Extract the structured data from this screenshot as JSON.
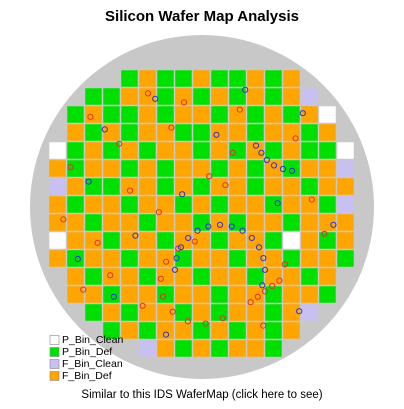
{
  "chart_data": {
    "type": "wafer",
    "title": "Silicon Wafer Map Analysis",
    "footer": "Similar to this IDS WaferMap (click here to see)",
    "legend": "bottom-left",
    "series": [
      {
        "name": "P_Bin_Clean",
        "color": "#ffffff"
      },
      {
        "name": "P_Bin_Def",
        "color": "#00e000"
      },
      {
        "name": "F_Bin_Clean",
        "color": "#c8c0f0"
      },
      {
        "name": "F_Bin_Def",
        "color": "#ffa500"
      }
    ],
    "dies": [
      [
        null,
        null,
        null,
        null,
        1,
        3,
        1,
        1,
        3,
        1,
        1,
        3,
        1,
        3,
        null,
        null,
        null
      ],
      [
        null,
        null,
        1,
        1,
        3,
        3,
        1,
        3,
        1,
        3,
        1,
        3,
        1,
        3,
        2,
        null,
        null
      ],
      [
        null,
        1,
        3,
        1,
        1,
        3,
        1,
        3,
        3,
        1,
        3,
        1,
        3,
        1,
        3,
        0,
        null
      ],
      [
        null,
        3,
        1,
        3,
        1,
        3,
        3,
        1,
        1,
        3,
        3,
        1,
        3,
        3,
        1,
        3,
        null
      ],
      [
        0,
        1,
        3,
        1,
        3,
        1,
        3,
        3,
        1,
        3,
        1,
        3,
        1,
        3,
        1,
        1,
        0
      ],
      [
        3,
        1,
        3,
        3,
        1,
        3,
        1,
        3,
        3,
        1,
        3,
        1,
        3,
        1,
        3,
        3,
        2
      ],
      [
        2,
        3,
        1,
        1,
        3,
        3,
        1,
        3,
        1,
        3,
        3,
        1,
        3,
        3,
        1,
        3,
        3
      ],
      [
        3,
        1,
        3,
        3,
        1,
        3,
        3,
        1,
        3,
        1,
        3,
        3,
        1,
        3,
        3,
        1,
        2
      ],
      [
        3,
        3,
        1,
        3,
        3,
        1,
        3,
        3,
        1,
        3,
        1,
        3,
        3,
        1,
        3,
        3,
        3
      ],
      [
        0,
        3,
        3,
        1,
        3,
        3,
        1,
        3,
        3,
        1,
        3,
        3,
        1,
        0,
        3,
        1,
        3
      ],
      [
        3,
        1,
        3,
        3,
        1,
        3,
        3,
        1,
        3,
        3,
        1,
        3,
        3,
        1,
        3,
        3,
        1
      ],
      [
        null,
        3,
        1,
        3,
        3,
        1,
        3,
        3,
        1,
        3,
        3,
        1,
        3,
        3,
        1,
        3,
        null
      ],
      [
        null,
        3,
        3,
        1,
        3,
        3,
        1,
        3,
        3,
        1,
        3,
        3,
        1,
        3,
        3,
        1,
        null
      ],
      [
        null,
        null,
        1,
        3,
        1,
        3,
        3,
        1,
        3,
        1,
        3,
        3,
        1,
        3,
        2,
        null,
        null
      ],
      [
        null,
        null,
        null,
        1,
        3,
        1,
        3,
        3,
        1,
        3,
        1,
        3,
        1,
        3,
        null,
        null,
        null
      ],
      [
        null,
        null,
        null,
        null,
        null,
        2,
        3,
        1,
        3,
        1,
        3,
        3,
        1,
        null,
        null,
        null,
        null
      ]
    ],
    "defects": [
      {
        "color": "#e03030",
        "x": [
          8.1,
          7.18,
          6.51,
          6.21,
          6.34,
          6.87,
          7.71,
          8.7,
          9.65,
          11.2,
          11.6,
          12.0,
          12.4,
          12.8,
          5.5,
          2.3,
          3.9,
          6.8,
          10.6,
          13.7,
          1.2,
          4.5,
          8.9,
          14.6,
          0.8,
          2.7,
          6.1,
          9.8,
          15.3,
          3.4,
          11.9,
          5.2,
          7.5,
          13.1,
          1.9,
          10.2
        ],
        "y": [
          9.53,
          9.92,
          10.65,
          11.6,
          12.59,
          13.43,
          13.96,
          14.09,
          13.79,
          12.9,
          12.6,
          12.3,
          12.0,
          11.7,
          1.3,
          2.6,
          4.1,
          3.2,
          2.2,
          3.8,
          5.4,
          6.7,
          5.9,
          7.2,
          8.3,
          9.6,
          7.9,
          6.4,
          9.1,
          11.4,
          14.2,
          13.1,
          1.8,
          10.8,
          12.2,
          4.6
        ]
      },
      {
        "color": "#3030d0",
        "x": [
          7.0,
          7.09,
          7.33,
          7.73,
          8.25,
          8.85,
          9.5,
          10.15,
          10.75,
          11.27,
          11.67,
          11.91,
          12.0,
          11.85,
          11.5,
          11.8,
          12.1,
          12.5,
          13.0,
          13.5,
          5.9,
          3.1,
          9.3,
          14.1,
          2.2,
          7.4,
          12.7,
          4.8,
          1.6,
          15.8,
          6.5,
          10.9,
          3.6,
          13.9
        ],
        "y": [
          11.1,
          10.45,
          9.85,
          9.33,
          8.93,
          8.69,
          8.6,
          8.69,
          8.93,
          9.33,
          9.85,
          10.45,
          11.1,
          11.96,
          4.2,
          4.6,
          5.0,
          5.3,
          5.5,
          5.6,
          1.6,
          3.3,
          3.6,
          2.4,
          6.2,
          6.9,
          7.4,
          9.2,
          10.5,
          8.6,
          14.7,
          1.1,
          12.6,
          13.4
        ]
      }
    ]
  }
}
